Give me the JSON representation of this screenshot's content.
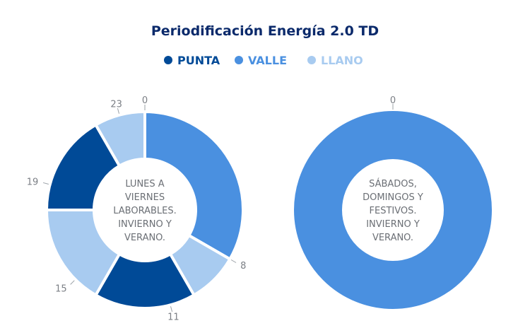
{
  "chart_data": {
    "type": "pie",
    "title": "Periodificación Energía 2.0 TD",
    "legend": {
      "placement": "top-center",
      "entries": [
        {
          "name": "PUNTA",
          "color": "#004a97"
        },
        {
          "name": "VALLE",
          "color": "#4a90e0"
        },
        {
          "name": "LLANO",
          "color": "#a8cbf0"
        }
      ]
    },
    "charts": [
      {
        "center_label": [
          "LUNES A",
          "VIERNES",
          "LABORABLES.",
          "INVIERNO Y",
          "VERANO."
        ],
        "unit": "hours",
        "slices": [
          {
            "period": "VALLE",
            "start": 0,
            "end": 8,
            "value": 8
          },
          {
            "period": "LLANO",
            "start": 8,
            "end": 10,
            "value": 2
          },
          {
            "period": "PUNTA",
            "start": 10,
            "end": 14,
            "value": 4
          },
          {
            "period": "LLANO",
            "start": 14,
            "end": 18,
            "value": 4
          },
          {
            "period": "PUNTA",
            "start": 18,
            "end": 22,
            "value": 4
          },
          {
            "period": "LLANO",
            "start": 22,
            "end": 24,
            "value": 2
          }
        ],
        "hour_labels": [
          "0",
          "8",
          "11",
          "15",
          "19",
          "23"
        ]
      },
      {
        "center_label": [
          "SÁBADOS,",
          "DOMINGOS Y",
          "FESTIVOS.",
          "INVIERNO Y",
          "VERANO."
        ],
        "unit": "hours",
        "slices": [
          {
            "period": "VALLE",
            "start": 0,
            "end": 24,
            "value": 24
          }
        ],
        "hour_labels": [
          "0"
        ]
      }
    ]
  }
}
